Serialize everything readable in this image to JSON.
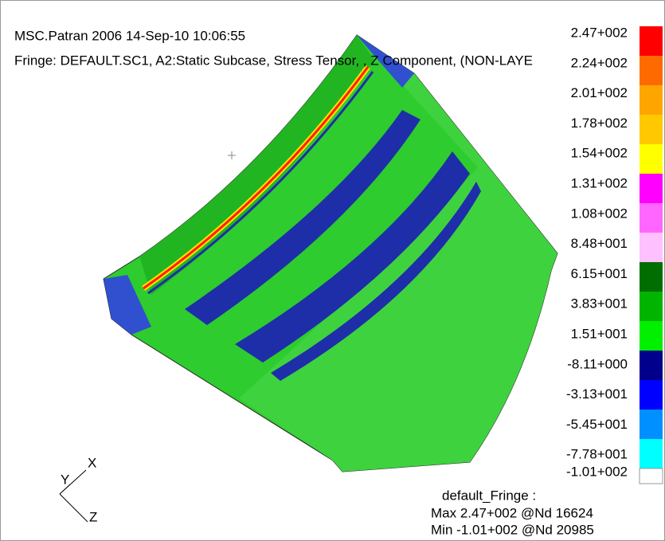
{
  "header": {
    "line1": "MSC.Patran 2006 14-Sep-10 10:06:55",
    "line2": "Fringe: DEFAULT.SC1, A2:Static Subcase, Stress Tensor, , Z Component, (NON-LAYE"
  },
  "legend": {
    "labels": [
      "2.47+002",
      "2.24+002",
      "2.01+002",
      "1.78+002",
      "1.54+002",
      "1.31+002",
      "1.08+002",
      "8.48+001",
      "6.15+001",
      "3.83+001",
      "1.51+001",
      "-8.11+000",
      "-3.13+001",
      "-5.45+001",
      "-7.78+001",
      "-1.01+002"
    ]
  },
  "triad": {
    "x": "X",
    "y": "Y",
    "z": "Z"
  },
  "footer": {
    "title": "default_Fringe :",
    "max": "Max 2.47+002 @Nd 16624",
    "min": "Min -1.01+002 @Nd 20985"
  }
}
